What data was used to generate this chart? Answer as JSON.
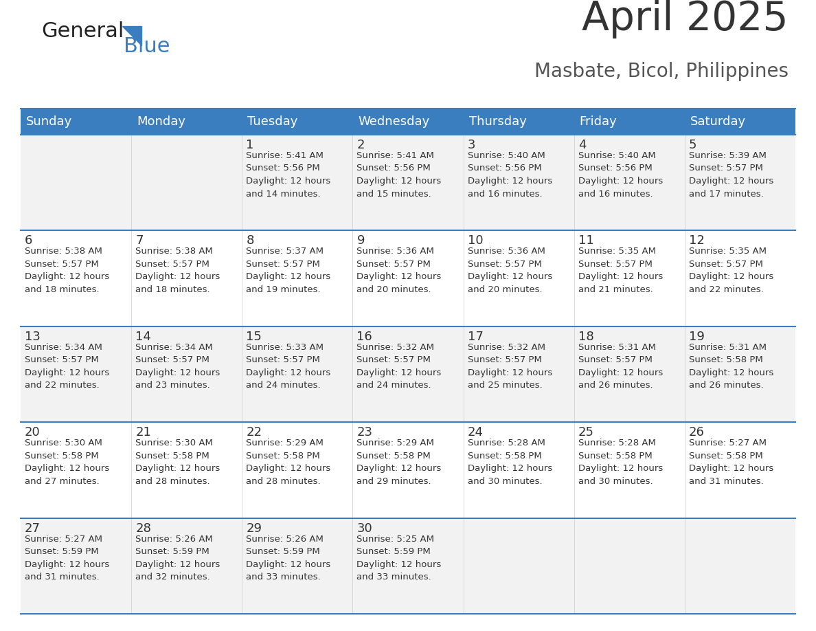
{
  "title": "April 2025",
  "subtitle": "Masbate, Bicol, Philippines",
  "header_color": "#3a7ebf",
  "header_text_color": "#ffffff",
  "row_bg_colors": [
    "#f2f2f2",
    "#ffffff"
  ],
  "border_color": "#3a7ebf",
  "text_color": "#333333",
  "days_of_week": [
    "Sunday",
    "Monday",
    "Tuesday",
    "Wednesday",
    "Thursday",
    "Friday",
    "Saturday"
  ],
  "calendar_data": [
    [
      {
        "day": "",
        "info": ""
      },
      {
        "day": "",
        "info": ""
      },
      {
        "day": "1",
        "info": "Sunrise: 5:41 AM\nSunset: 5:56 PM\nDaylight: 12 hours\nand 14 minutes."
      },
      {
        "day": "2",
        "info": "Sunrise: 5:41 AM\nSunset: 5:56 PM\nDaylight: 12 hours\nand 15 minutes."
      },
      {
        "day": "3",
        "info": "Sunrise: 5:40 AM\nSunset: 5:56 PM\nDaylight: 12 hours\nand 16 minutes."
      },
      {
        "day": "4",
        "info": "Sunrise: 5:40 AM\nSunset: 5:56 PM\nDaylight: 12 hours\nand 16 minutes."
      },
      {
        "day": "5",
        "info": "Sunrise: 5:39 AM\nSunset: 5:57 PM\nDaylight: 12 hours\nand 17 minutes."
      }
    ],
    [
      {
        "day": "6",
        "info": "Sunrise: 5:38 AM\nSunset: 5:57 PM\nDaylight: 12 hours\nand 18 minutes."
      },
      {
        "day": "7",
        "info": "Sunrise: 5:38 AM\nSunset: 5:57 PM\nDaylight: 12 hours\nand 18 minutes."
      },
      {
        "day": "8",
        "info": "Sunrise: 5:37 AM\nSunset: 5:57 PM\nDaylight: 12 hours\nand 19 minutes."
      },
      {
        "day": "9",
        "info": "Sunrise: 5:36 AM\nSunset: 5:57 PM\nDaylight: 12 hours\nand 20 minutes."
      },
      {
        "day": "10",
        "info": "Sunrise: 5:36 AM\nSunset: 5:57 PM\nDaylight: 12 hours\nand 20 minutes."
      },
      {
        "day": "11",
        "info": "Sunrise: 5:35 AM\nSunset: 5:57 PM\nDaylight: 12 hours\nand 21 minutes."
      },
      {
        "day": "12",
        "info": "Sunrise: 5:35 AM\nSunset: 5:57 PM\nDaylight: 12 hours\nand 22 minutes."
      }
    ],
    [
      {
        "day": "13",
        "info": "Sunrise: 5:34 AM\nSunset: 5:57 PM\nDaylight: 12 hours\nand 22 minutes."
      },
      {
        "day": "14",
        "info": "Sunrise: 5:34 AM\nSunset: 5:57 PM\nDaylight: 12 hours\nand 23 minutes."
      },
      {
        "day": "15",
        "info": "Sunrise: 5:33 AM\nSunset: 5:57 PM\nDaylight: 12 hours\nand 24 minutes."
      },
      {
        "day": "16",
        "info": "Sunrise: 5:32 AM\nSunset: 5:57 PM\nDaylight: 12 hours\nand 24 minutes."
      },
      {
        "day": "17",
        "info": "Sunrise: 5:32 AM\nSunset: 5:57 PM\nDaylight: 12 hours\nand 25 minutes."
      },
      {
        "day": "18",
        "info": "Sunrise: 5:31 AM\nSunset: 5:57 PM\nDaylight: 12 hours\nand 26 minutes."
      },
      {
        "day": "19",
        "info": "Sunrise: 5:31 AM\nSunset: 5:58 PM\nDaylight: 12 hours\nand 26 minutes."
      }
    ],
    [
      {
        "day": "20",
        "info": "Sunrise: 5:30 AM\nSunset: 5:58 PM\nDaylight: 12 hours\nand 27 minutes."
      },
      {
        "day": "21",
        "info": "Sunrise: 5:30 AM\nSunset: 5:58 PM\nDaylight: 12 hours\nand 28 minutes."
      },
      {
        "day": "22",
        "info": "Sunrise: 5:29 AM\nSunset: 5:58 PM\nDaylight: 12 hours\nand 28 minutes."
      },
      {
        "day": "23",
        "info": "Sunrise: 5:29 AM\nSunset: 5:58 PM\nDaylight: 12 hours\nand 29 minutes."
      },
      {
        "day": "24",
        "info": "Sunrise: 5:28 AM\nSunset: 5:58 PM\nDaylight: 12 hours\nand 30 minutes."
      },
      {
        "day": "25",
        "info": "Sunrise: 5:28 AM\nSunset: 5:58 PM\nDaylight: 12 hours\nand 30 minutes."
      },
      {
        "day": "26",
        "info": "Sunrise: 5:27 AM\nSunset: 5:58 PM\nDaylight: 12 hours\nand 31 minutes."
      }
    ],
    [
      {
        "day": "27",
        "info": "Sunrise: 5:27 AM\nSunset: 5:59 PM\nDaylight: 12 hours\nand 31 minutes."
      },
      {
        "day": "28",
        "info": "Sunrise: 5:26 AM\nSunset: 5:59 PM\nDaylight: 12 hours\nand 32 minutes."
      },
      {
        "day": "29",
        "info": "Sunrise: 5:26 AM\nSunset: 5:59 PM\nDaylight: 12 hours\nand 33 minutes."
      },
      {
        "day": "30",
        "info": "Sunrise: 5:25 AM\nSunset: 5:59 PM\nDaylight: 12 hours\nand 33 minutes."
      },
      {
        "day": "",
        "info": ""
      },
      {
        "day": "",
        "info": ""
      },
      {
        "day": "",
        "info": ""
      }
    ]
  ]
}
